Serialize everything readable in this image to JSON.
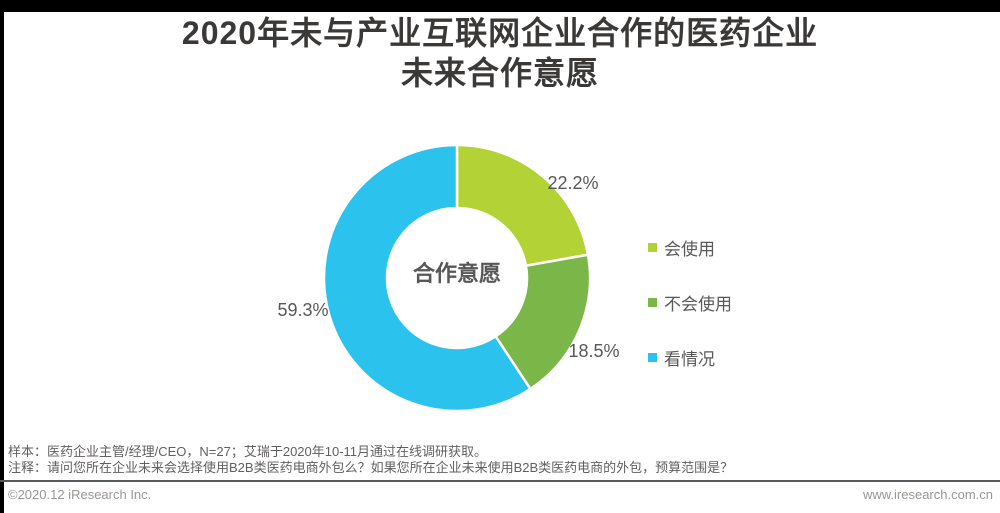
{
  "title": {
    "line1": "2020年未与产业互联网企业合作的医药企业",
    "line2": "未来合作意愿"
  },
  "chart_data": {
    "type": "pie",
    "subtype": "donut",
    "center_label": "合作意愿",
    "slices": [
      {
        "name": "会使用",
        "value": 22.2,
        "label": "22.2%",
        "color": "#b2d235"
      },
      {
        "name": "不会使用",
        "value": 18.5,
        "label": "18.5%",
        "color": "#7ab648"
      },
      {
        "name": "看情况",
        "value": 59.3,
        "label": "59.3%",
        "color": "#2cc2ee"
      }
    ],
    "start_angle_deg": -90,
    "direction": "clockwise",
    "donut_hole_ratio": 0.53,
    "slice_border_color": "#ffffff",
    "legend_position": "right"
  },
  "notes": {
    "sample": "样本：医药企业主管/经理/CEO，N=27；艾瑞于2020年10-11月通过在线调研获取。",
    "question": "注释：请问您所在企业未来会选择使用B2B类医药电商外包么？如果您所在企业未来使用B2B类医药电商的外包，预算范围是？"
  },
  "footer": {
    "copyright": "©2020.12 iResearch Inc.",
    "website": "www.iresearch.com.cn"
  }
}
